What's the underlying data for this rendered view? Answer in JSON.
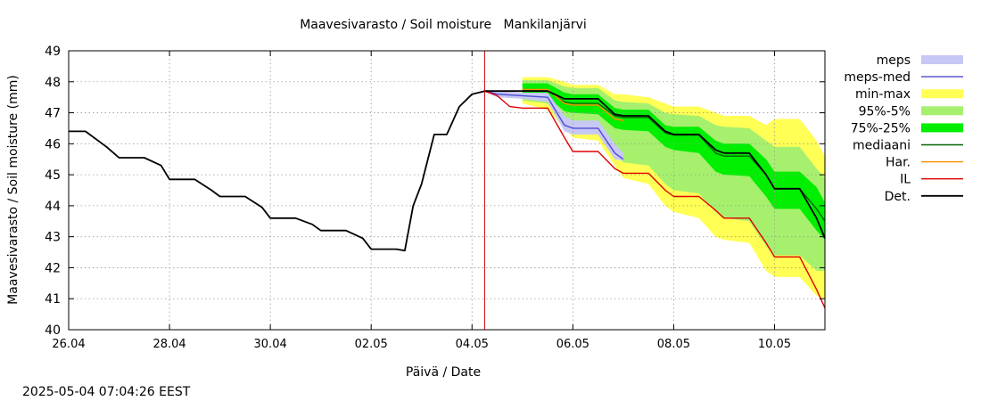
{
  "chart_data": {
    "type": "line",
    "title": "Maavesivarasto / Soil moisture   Mankilanjärvi",
    "xlabel": "Päivä / Date",
    "ylabel": "Maavesivarasto / Soil moisture (mm)",
    "timestamp": "2025-05-04 07:04:26 EEST",
    "x_range": [
      "2025-04-26",
      "2025-05-11"
    ],
    "ylim": [
      40,
      49
    ],
    "grid": true,
    "legend_position": "right",
    "x_ticks": [
      "26.04",
      "28.04",
      "30.04",
      "02.05",
      "04.05",
      "06.05",
      "08.05",
      "10.05"
    ],
    "y_ticks": [
      "40",
      "41",
      "42",
      "43",
      "44",
      "45",
      "46",
      "47",
      "48",
      "49"
    ],
    "forecast_start": "2025-05-04 06:00",
    "legend": [
      {
        "label": "meps",
        "color": "#c8c8f5",
        "kind": "band"
      },
      {
        "label": "meps-med",
        "color": "#4b4bd0",
        "kind": "line"
      },
      {
        "label": "min-max",
        "color": "#ffff55",
        "kind": "band"
      },
      {
        "label": "95%-5%",
        "color": "#a6f06e",
        "kind": "band"
      },
      {
        "label": "75%-25%",
        "color": "#00ee00",
        "kind": "band"
      },
      {
        "label": "mediaani",
        "color": "#006400",
        "kind": "line"
      },
      {
        "label": "Har.",
        "color": "#ff8c00",
        "kind": "line"
      },
      {
        "label": "IL",
        "color": "#e00000",
        "kind": "line"
      },
      {
        "label": "Det.",
        "color": "#000000",
        "kind": "line"
      }
    ],
    "series": [
      {
        "name": "Det.",
        "points": [
          [
            "2025-04-26 00:00",
            46.4
          ],
          [
            "2025-04-26 08:00",
            46.4
          ],
          [
            "2025-04-26 18:00",
            45.9
          ],
          [
            "2025-04-27 00:00",
            45.55
          ],
          [
            "2025-04-27 12:00",
            45.55
          ],
          [
            "2025-04-27 20:00",
            45.3
          ],
          [
            "2025-04-28 00:00",
            44.85
          ],
          [
            "2025-04-28 12:00",
            44.85
          ],
          [
            "2025-04-28 20:00",
            44.5
          ],
          [
            "2025-04-29 00:00",
            44.3
          ],
          [
            "2025-04-29 12:00",
            44.3
          ],
          [
            "2025-04-29 20:00",
            43.95
          ],
          [
            "2025-04-30 00:00",
            43.6
          ],
          [
            "2025-04-30 12:00",
            43.6
          ],
          [
            "2025-04-30 20:00",
            43.4
          ],
          [
            "2025-05-01 00:00",
            43.2
          ],
          [
            "2025-05-01 12:00",
            43.2
          ],
          [
            "2025-05-01 20:00",
            42.95
          ],
          [
            "2025-05-02 00:00",
            42.6
          ],
          [
            "2025-05-02 12:00",
            42.6
          ],
          [
            "2025-05-02 16:00",
            42.55
          ],
          [
            "2025-05-02 20:00",
            44.0
          ],
          [
            "2025-05-03 00:00",
            44.7
          ],
          [
            "2025-05-03 06:00",
            46.3
          ],
          [
            "2025-05-03 12:00",
            46.3
          ],
          [
            "2025-05-03 18:00",
            47.2
          ],
          [
            "2025-05-04 00:00",
            47.6
          ],
          [
            "2025-05-04 06:00",
            47.7
          ],
          [
            "2025-05-05 00:00",
            47.7
          ],
          [
            "2025-05-05 12:00",
            47.7
          ],
          [
            "2025-05-05 20:00",
            47.45
          ],
          [
            "2025-05-06 00:00",
            47.45
          ],
          [
            "2025-05-06 12:00",
            47.45
          ],
          [
            "2025-05-06 20:00",
            46.95
          ],
          [
            "2025-05-07 00:00",
            46.9
          ],
          [
            "2025-05-07 12:00",
            46.9
          ],
          [
            "2025-05-07 20:00",
            46.4
          ],
          [
            "2025-05-08 00:00",
            46.3
          ],
          [
            "2025-05-08 12:00",
            46.3
          ],
          [
            "2025-05-08 20:00",
            45.8
          ],
          [
            "2025-05-09 00:00",
            45.7
          ],
          [
            "2025-05-09 12:00",
            45.7
          ],
          [
            "2025-05-09 20:00",
            45.0
          ],
          [
            "2025-05-10 00:00",
            44.55
          ],
          [
            "2025-05-10 12:00",
            44.55
          ],
          [
            "2025-05-10 20:00",
            43.6
          ],
          [
            "2025-05-11 00:00",
            42.95
          ]
        ]
      },
      {
        "name": "IL",
        "points": [
          [
            "2025-05-04 06:00",
            47.7
          ],
          [
            "2025-05-04 12:00",
            47.55
          ],
          [
            "2025-05-04 18:00",
            47.2
          ],
          [
            "2025-05-05 00:00",
            47.15
          ],
          [
            "2025-05-05 12:00",
            47.15
          ],
          [
            "2025-05-05 20:00",
            46.2
          ],
          [
            "2025-05-06 00:00",
            45.75
          ],
          [
            "2025-05-06 12:00",
            45.75
          ],
          [
            "2025-05-06 20:00",
            45.2
          ],
          [
            "2025-05-07 00:00",
            45.05
          ],
          [
            "2025-05-07 12:00",
            45.05
          ],
          [
            "2025-05-07 20:00",
            44.5
          ],
          [
            "2025-05-08 00:00",
            44.3
          ],
          [
            "2025-05-08 12:00",
            44.3
          ],
          [
            "2025-05-08 20:00",
            43.85
          ],
          [
            "2025-05-09 00:00",
            43.6
          ],
          [
            "2025-05-09 12:00",
            43.6
          ],
          [
            "2025-05-09 20:00",
            42.8
          ],
          [
            "2025-05-10 00:00",
            42.35
          ],
          [
            "2025-05-10 12:00",
            42.35
          ],
          [
            "2025-05-10 20:00",
            41.3
          ],
          [
            "2025-05-11 00:00",
            40.7
          ]
        ]
      },
      {
        "name": "meps-med",
        "points": [
          [
            "2025-05-04 06:00",
            47.7
          ],
          [
            "2025-05-04 12:00",
            47.6
          ],
          [
            "2025-05-05 00:00",
            47.55
          ],
          [
            "2025-05-05 12:00",
            47.5
          ],
          [
            "2025-05-05 20:00",
            46.6
          ],
          [
            "2025-05-06 00:00",
            46.5
          ],
          [
            "2025-05-06 12:00",
            46.5
          ],
          [
            "2025-05-06 20:00",
            45.7
          ],
          [
            "2025-05-07 00:00",
            45.5
          ]
        ]
      },
      {
        "name": "mediaani",
        "points": [
          [
            "2025-05-05 00:00",
            47.72
          ],
          [
            "2025-05-05 12:00",
            47.72
          ],
          [
            "2025-05-05 20:00",
            47.35
          ],
          [
            "2025-05-06 00:00",
            47.3
          ],
          [
            "2025-05-06 12:00",
            47.3
          ],
          [
            "2025-05-06 20:00",
            46.9
          ],
          [
            "2025-05-07 00:00",
            46.85
          ],
          [
            "2025-05-07 12:00",
            46.85
          ],
          [
            "2025-05-07 20:00",
            46.35
          ],
          [
            "2025-05-08 00:00",
            46.28
          ],
          [
            "2025-05-08 12:00",
            46.28
          ],
          [
            "2025-05-08 20:00",
            45.7
          ],
          [
            "2025-05-09 00:00",
            45.6
          ],
          [
            "2025-05-09 12:00",
            45.6
          ],
          [
            "2025-05-09 20:00",
            45.0
          ],
          [
            "2025-05-10 00:00",
            44.55
          ],
          [
            "2025-05-10 12:00",
            44.55
          ],
          [
            "2025-05-10 20:00",
            43.9
          ],
          [
            "2025-05-11 00:00",
            43.5
          ]
        ]
      },
      {
        "name": "Har.",
        "points": [
          [
            "2025-05-05 00:00",
            47.75
          ],
          [
            "2025-05-05 12:00",
            47.75
          ],
          [
            "2025-05-05 20:00",
            47.3
          ],
          [
            "2025-05-06 00:00",
            47.25
          ],
          [
            "2025-05-06 12:00",
            47.25
          ],
          [
            "2025-05-06 20:00",
            46.8
          ],
          [
            "2025-05-07 00:00",
            46.75
          ]
        ]
      }
    ],
    "bands": [
      {
        "name": "min-max",
        "x": [
          "2025-05-05 00:00",
          "2025-05-05 12:00",
          "2025-05-05 20:00",
          "2025-05-06 00:00",
          "2025-05-06 12:00",
          "2025-05-06 20:00",
          "2025-05-07 00:00",
          "2025-05-07 12:00",
          "2025-05-07 20:00",
          "2025-05-08 00:00",
          "2025-05-08 12:00",
          "2025-05-08 20:00",
          "2025-05-09 00:00",
          "2025-05-09 12:00",
          "2025-05-09 20:00",
          "2025-05-10 00:00",
          "2025-05-10 12:00",
          "2025-05-10 20:00",
          "2025-05-11 00:00"
        ],
        "low": [
          47.3,
          47.1,
          46.5,
          46.2,
          46.1,
          45.3,
          44.9,
          44.7,
          44.0,
          43.8,
          43.6,
          43.0,
          42.9,
          42.8,
          41.9,
          41.7,
          41.7,
          41.1,
          41.0
        ],
        "high": [
          48.15,
          48.15,
          48.0,
          47.9,
          47.9,
          47.6,
          47.6,
          47.5,
          47.3,
          47.2,
          47.2,
          47.0,
          46.9,
          46.9,
          46.6,
          46.8,
          46.8,
          46.1,
          45.6
        ]
      },
      {
        "name": "95%-5%",
        "x": [
          "2025-05-05 00:00",
          "2025-05-05 12:00",
          "2025-05-05 20:00",
          "2025-05-06 00:00",
          "2025-05-06 12:00",
          "2025-05-06 20:00",
          "2025-05-07 00:00",
          "2025-05-07 12:00",
          "2025-05-07 20:00",
          "2025-05-08 00:00",
          "2025-05-08 12:00",
          "2025-05-08 20:00",
          "2025-05-09 00:00",
          "2025-05-09 12:00",
          "2025-05-09 20:00",
          "2025-05-10 00:00",
          "2025-05-10 12:00",
          "2025-05-10 20:00",
          "2025-05-11 00:00"
        ],
        "low": [
          47.4,
          47.3,
          46.7,
          46.5,
          46.4,
          45.7,
          45.4,
          45.3,
          44.7,
          44.5,
          44.4,
          43.8,
          43.6,
          43.5,
          42.7,
          42.4,
          42.4,
          41.9,
          41.9
        ],
        "high": [
          48.05,
          48.05,
          47.85,
          47.8,
          47.8,
          47.4,
          47.35,
          47.3,
          47.0,
          46.95,
          46.9,
          46.6,
          46.55,
          46.5,
          46.1,
          45.9,
          45.9,
          45.2,
          44.9
        ]
      },
      {
        "name": "75%-25%",
        "x": [
          "2025-05-05 00:00",
          "2025-05-05 12:00",
          "2025-05-05 20:00",
          "2025-05-06 00:00",
          "2025-05-06 12:00",
          "2025-05-06 20:00",
          "2025-05-07 00:00",
          "2025-05-07 12:00",
          "2025-05-07 20:00",
          "2025-05-08 00:00",
          "2025-05-08 12:00",
          "2025-05-08 20:00",
          "2025-05-09 00:00",
          "2025-05-09 12:00",
          "2025-05-09 20:00",
          "2025-05-10 00:00",
          "2025-05-10 12:00",
          "2025-05-10 20:00",
          "2025-05-11 00:00"
        ],
        "low": [
          47.5,
          47.5,
          47.05,
          47.0,
          46.95,
          46.5,
          46.45,
          46.4,
          45.9,
          45.8,
          45.7,
          45.1,
          45.0,
          44.95,
          44.3,
          43.9,
          43.9,
          43.2,
          42.9
        ],
        "high": [
          47.95,
          47.95,
          47.65,
          47.6,
          47.6,
          47.15,
          47.1,
          47.1,
          46.6,
          46.55,
          46.55,
          46.1,
          46.0,
          46.0,
          45.5,
          45.1,
          45.1,
          44.6,
          44.1
        ]
      },
      {
        "name": "meps",
        "x": [
          "2025-05-04 06:00",
          "2025-05-04 12:00",
          "2025-05-05 00:00",
          "2025-05-05 12:00",
          "2025-05-05 20:00",
          "2025-05-06 00:00",
          "2025-05-06 12:00",
          "2025-05-06 20:00",
          "2025-05-07 00:00"
        ],
        "low": [
          47.7,
          47.5,
          47.45,
          47.35,
          46.4,
          46.3,
          46.3,
          45.5,
          45.45
        ],
        "high": [
          47.7,
          47.7,
          47.65,
          47.65,
          46.9,
          46.75,
          46.75,
          46.0,
          45.7
        ]
      }
    ]
  }
}
